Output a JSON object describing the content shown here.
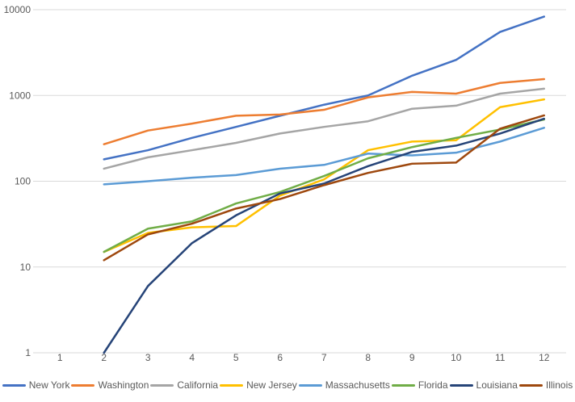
{
  "chart_data": {
    "type": "line",
    "title": "",
    "x_axis": {
      "labels": [
        "1",
        "2",
        "3",
        "4",
        "5",
        "6",
        "7",
        "8",
        "9",
        "10",
        "11",
        "12"
      ],
      "categories": 12
    },
    "y_axis": {
      "scale": "log",
      "ticks": [
        1,
        10,
        100,
        1000,
        10000
      ],
      "tick_labels": [
        "1",
        "10",
        "100",
        "1000",
        "10000"
      ],
      "range": [
        1,
        10000
      ]
    },
    "grid": "horizontal",
    "legend_position": "bottom",
    "series": [
      {
        "name": "New York",
        "color": "#4472C4",
        "x_start": 2,
        "values": [
          180,
          230,
          320,
          430,
          580,
          780,
          1000,
          1700,
          2600,
          5500,
          8300
        ]
      },
      {
        "name": "Washington",
        "color": "#ED7D31",
        "x_start": 2,
        "values": [
          270,
          390,
          470,
          580,
          600,
          680,
          950,
          1100,
          1050,
          1400,
          1550
        ]
      },
      {
        "name": "California",
        "color": "#A5A5A5",
        "x_start": 2,
        "values": [
          140,
          190,
          230,
          280,
          360,
          430,
          500,
          700,
          760,
          1050,
          1200
        ]
      },
      {
        "name": "New Jersey",
        "color": "#FFC000",
        "x_start": 2,
        "values": [
          15,
          25,
          29,
          30,
          68,
          105,
          230,
          290,
          300,
          730,
          900
        ]
      },
      {
        "name": "Massachusetts",
        "color": "#5B9BD5",
        "x_start": 2,
        "values": [
          92,
          100,
          110,
          118,
          140,
          155,
          210,
          200,
          215,
          290,
          420
        ]
      },
      {
        "name": "Florida",
        "color": "#70AD47",
        "x_start": 2,
        "values": [
          15,
          28,
          34,
          55,
          75,
          115,
          185,
          250,
          320,
          400,
          525
        ]
      },
      {
        "name": "Louisiana",
        "color": "#264478",
        "x_start": 2,
        "values": [
          1,
          6,
          19,
          40,
          72,
          94,
          150,
          220,
          260,
          360,
          535
        ]
      },
      {
        "name": "Illinois",
        "color": "#9E480E",
        "x_start": 2,
        "values": [
          12,
          24,
          32,
          48,
          62,
          90,
          125,
          160,
          165,
          410,
          585
        ]
      }
    ]
  },
  "colors": {
    "background": "#FFFFFF",
    "gridline": "#D9D9D9",
    "axis_text": "#595959"
  }
}
